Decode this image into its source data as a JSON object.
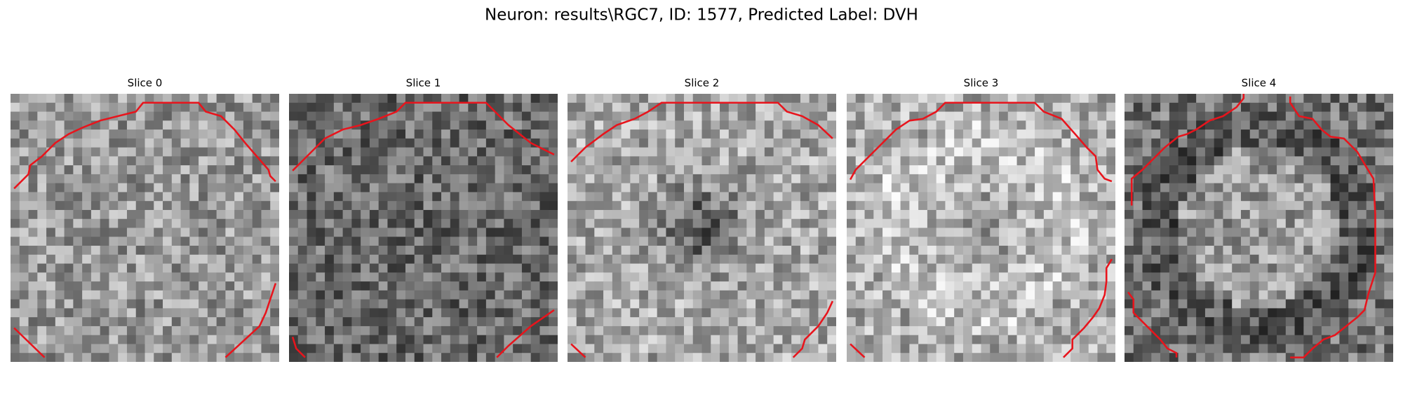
{
  "title": "Neuron: results\\RGC7, ID: 1577, Predicted Label: DVH",
  "panels": [
    {
      "title": "Slice 0"
    },
    {
      "title": "Slice 1"
    },
    {
      "title": "Slice 2"
    },
    {
      "title": "Slice 3"
    },
    {
      "title": "Slice 4"
    }
  ]
}
